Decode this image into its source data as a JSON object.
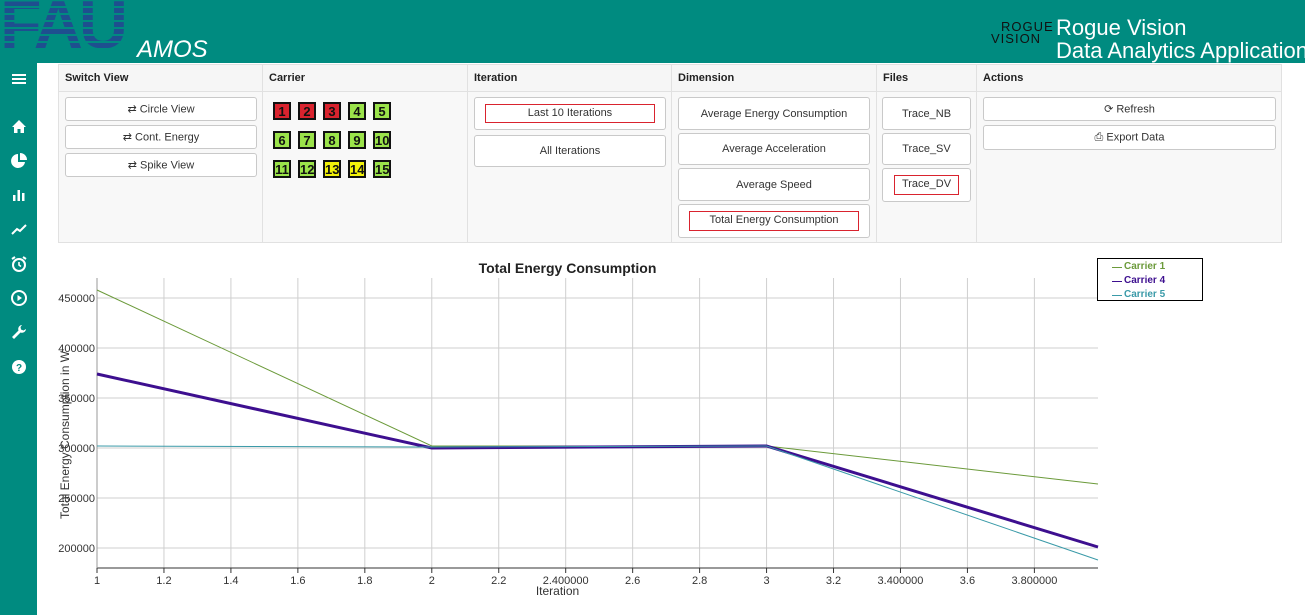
{
  "header": {
    "logo_text": "FAU",
    "app_subtitle": "AMOS",
    "brand_logo_line1": "ROGUE",
    "brand_logo_line2": "VISION",
    "brand_name": "Rogue Vision",
    "app_title": "Data Analytics Application"
  },
  "sidebar": {
    "items": [
      {
        "icon": "menu-icon"
      },
      {
        "icon": "home-icon"
      },
      {
        "icon": "pie-chart-icon"
      },
      {
        "icon": "bar-chart-icon"
      },
      {
        "icon": "line-chart-icon"
      },
      {
        "icon": "alarm-clock-icon"
      },
      {
        "icon": "play-circle-icon"
      },
      {
        "icon": "wrench-icon"
      },
      {
        "icon": "help-icon"
      }
    ]
  },
  "panel": {
    "switch_view": {
      "title": "Switch View",
      "buttons": [
        "⇄ Circle View",
        "⇄ Cont. Energy",
        "⇄ Spike View"
      ]
    },
    "carrier": {
      "title": "Carrier",
      "items": [
        {
          "label": "1",
          "color": "#d9232e"
        },
        {
          "label": "2",
          "color": "#d9232e"
        },
        {
          "label": "3",
          "color": "#d9232e"
        },
        {
          "label": "4",
          "color": "#9be34a"
        },
        {
          "label": "5",
          "color": "#9be34a"
        },
        {
          "label": "6",
          "color": "#9be34a"
        },
        {
          "label": "7",
          "color": "#9be34a"
        },
        {
          "label": "8",
          "color": "#9be34a"
        },
        {
          "label": "9",
          "color": "#9be34a"
        },
        {
          "label": "10",
          "color": "#9be34a"
        },
        {
          "label": "11",
          "color": "#9be34a"
        },
        {
          "label": "12",
          "color": "#9be34a"
        },
        {
          "label": "13",
          "color": "#f2f20a"
        },
        {
          "label": "14",
          "color": "#f2f20a"
        },
        {
          "label": "15",
          "color": "#9be34a"
        }
      ]
    },
    "iteration": {
      "title": "Iteration",
      "buttons": [
        "Last 10 Iterations",
        "All Iterations"
      ],
      "selected": "Last 10 Iterations"
    },
    "dimension": {
      "title": "Dimension",
      "buttons": [
        "Average Energy Consumption",
        "Average Acceleration",
        "Average Speed",
        "Total Energy Consumption"
      ],
      "selected": "Total Energy Consumption"
    },
    "files": {
      "title": "Files",
      "buttons": [
        "Trace_NB",
        "Trace_SV",
        "Trace_DV"
      ],
      "selected": "Trace_DV"
    },
    "actions": {
      "title": "Actions",
      "buttons": [
        "⟳ Refresh",
        "⎙ Export Data"
      ]
    }
  },
  "chart_data": {
    "type": "line",
    "title": "Total Energy Consumption",
    "xlabel": "Iteration",
    "ylabel": "Total Energy Consumption in W",
    "xlim": [
      1,
      3.99
    ],
    "ylim": [
      180000,
      470000
    ],
    "x_ticks": [
      "1",
      "1.2",
      "1.4",
      "1.6",
      "1.8",
      "2",
      "2.2",
      "2.400000",
      "2.6",
      "2.8",
      "3",
      "3.2",
      "3.400000",
      "3.6",
      "3.800000"
    ],
    "y_ticks": [
      "200000",
      "250000",
      "300000",
      "350000",
      "400000",
      "450000"
    ],
    "grid": true,
    "legend_position": "top-right",
    "series": [
      {
        "name": "Carrier 1",
        "color": "#6b9a3a",
        "width": 1,
        "x": [
          1,
          2,
          3,
          3.99
        ],
        "y": [
          458000,
          302000,
          302000,
          264000
        ]
      },
      {
        "name": "Carrier 4",
        "color": "#3d0f8f",
        "width": 3,
        "x": [
          1,
          2,
          3,
          3.99
        ],
        "y": [
          374000,
          300000,
          302000,
          201000
        ]
      },
      {
        "name": "Carrier 5",
        "color": "#3a9aa8",
        "width": 1,
        "x": [
          1,
          2,
          3,
          3.99
        ],
        "y": [
          302000,
          301000,
          302000,
          188000
        ]
      }
    ]
  }
}
